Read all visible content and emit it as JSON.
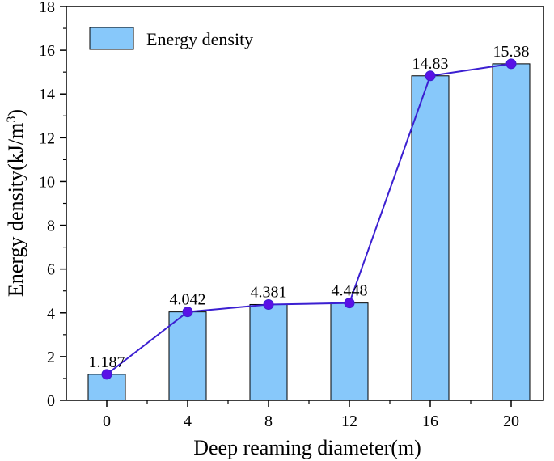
{
  "chart_data": {
    "type": "bar",
    "categories": [
      "0",
      "4",
      "8",
      "12",
      "16",
      "20"
    ],
    "series": [
      {
        "name": "Energy density",
        "values": [
          1.187,
          4.042,
          4.381,
          4.448,
          14.83,
          15.38
        ]
      }
    ],
    "data_labels": [
      "1.187",
      "4.042",
      "4.381",
      "4.448",
      "14.83",
      "15.38"
    ],
    "overlay_line": true,
    "xlabel": "Deep reaming diameter(m)",
    "ylabel_main": "Energy density(kJ/m",
    "ylabel_sup": "3",
    "ylabel_close": ")",
    "ylim": [
      0,
      18
    ],
    "yticks": [
      0,
      2,
      4,
      6,
      8,
      10,
      12,
      14,
      16,
      18
    ],
    "legend": {
      "label": "Energy density",
      "position": "top-left"
    },
    "grid": false,
    "colors": {
      "bar": "#87c8fa",
      "bar_edge": "#000000",
      "line": "#3b1fd1",
      "marker": "#5a11e6"
    }
  }
}
